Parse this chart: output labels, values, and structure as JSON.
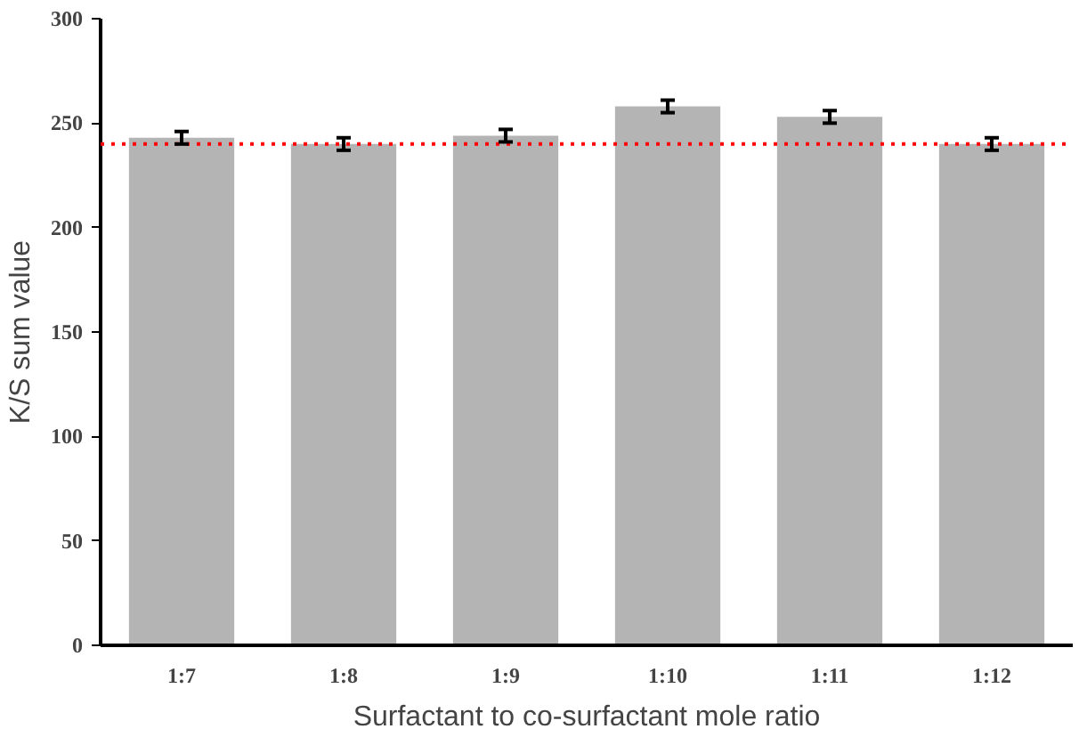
{
  "chart_data": {
    "type": "bar",
    "xlabel": "Surfactant to co-surfactant mole ratio",
    "ylabel": "K/S sum value",
    "categories": [
      "1:7",
      "1:8",
      "1:9",
      "1:10",
      "1:11",
      "1:12"
    ],
    "values": [
      243,
      240,
      244,
      258,
      253,
      240
    ],
    "color": "#b4b4b4",
    "errors": [
      3,
      3,
      3,
      3,
      3,
      3
    ],
    "ylim": [
      0,
      300
    ],
    "yticks": [
      0,
      50,
      100,
      150,
      200,
      250,
      300
    ],
    "grid": false,
    "ref_lines": [
      {
        "axis": "y",
        "value": 240,
        "color": "#ff0000",
        "line_style": "dotted"
      }
    ]
  }
}
